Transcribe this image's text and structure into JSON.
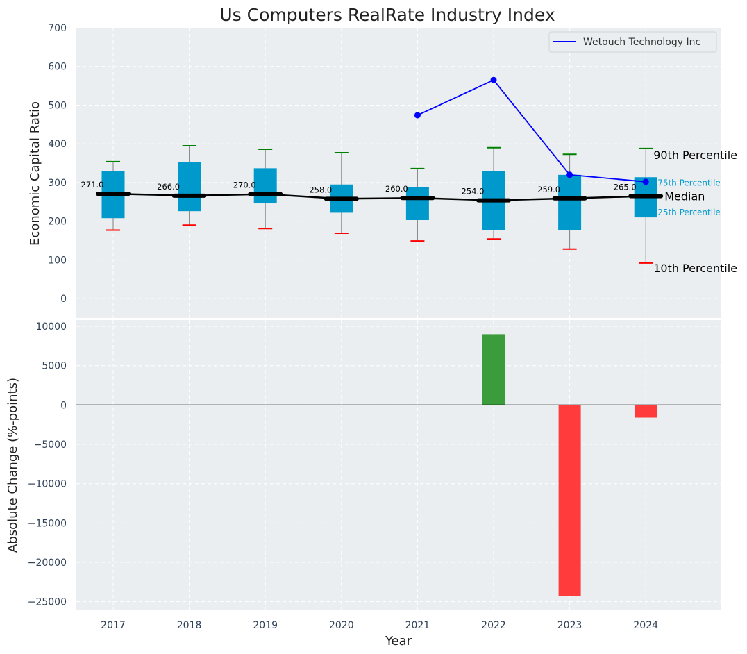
{
  "chart_data": [
    {
      "type": "box",
      "title": "Us Computers RealRate Industry Index",
      "ylabel": "Economic Capital Ratio",
      "ylim": [
        -50,
        700
      ],
      "yticks": [
        0,
        100,
        200,
        300,
        400,
        500,
        600,
        700
      ],
      "categories": [
        "2017",
        "2018",
        "2019",
        "2020",
        "2021",
        "2022",
        "2023",
        "2024"
      ],
      "grid": true,
      "legend_position": "top-right",
      "boxes": [
        {
          "year": "2017",
          "p10": 177,
          "p25": 208,
          "median": 271,
          "p75": 329,
          "p90": 354
        },
        {
          "year": "2018",
          "p10": 190,
          "p25": 226,
          "median": 266,
          "p75": 351,
          "p90": 395
        },
        {
          "year": "2019",
          "p10": 181,
          "p25": 246,
          "median": 270,
          "p75": 336,
          "p90": 386
        },
        {
          "year": "2020",
          "p10": 169,
          "p25": 222,
          "median": 258,
          "p75": 294,
          "p90": 377
        },
        {
          "year": "2021",
          "p10": 149,
          "p25": 203,
          "median": 260,
          "p75": 288,
          "p90": 336
        },
        {
          "year": "2022",
          "p10": 154,
          "p25": 177,
          "median": 254,
          "p75": 329,
          "p90": 390
        },
        {
          "year": "2023",
          "p10": 128,
          "p25": 177,
          "median": 259,
          "p75": 319,
          "p90": 373
        },
        {
          "year": "2024",
          "p10": 92,
          "p25": 210,
          "median": 265,
          "p75": 313,
          "p90": 388
        }
      ],
      "median_labels": [
        "271.0",
        "266.0",
        "270.0",
        "258.0",
        "260.0",
        "254.0",
        "259.0",
        "265.0"
      ],
      "series": [
        {
          "name": "Wetouch Technology Inc",
          "color": "#0000ff",
          "x": [
            "2021",
            "2022",
            "2023",
            "2024"
          ],
          "values": [
            474,
            565,
            320,
            302
          ]
        }
      ],
      "annotations": {
        "p90": "90th Percentile",
        "p75": "75th Percentile",
        "median": "Median",
        "p25": "25th Percentile",
        "p10": "10th Percentile"
      },
      "colors": {
        "box": "#0099cc",
        "median": "#000000",
        "whisker": "#808080",
        "cap_top": "#008000",
        "cap_bottom": "#ff0000",
        "panel_bg": "#eaeef0"
      }
    },
    {
      "type": "bar",
      "ylabel": "Absolute Change (%-points)",
      "xlabel": "Year",
      "ylim": [
        -26000,
        10800
      ],
      "yticks": [
        -25000,
        -20000,
        -15000,
        -10000,
        -5000,
        0,
        5000,
        10000
      ],
      "categories": [
        "2017",
        "2018",
        "2019",
        "2020",
        "2021",
        "2022",
        "2023",
        "2024"
      ],
      "values": [
        null,
        null,
        null,
        null,
        null,
        9000,
        -24300,
        -1600
      ],
      "colors": {
        "positive": "#3a9c3a",
        "negative": "#ff3b3b"
      },
      "grid": true
    }
  ]
}
